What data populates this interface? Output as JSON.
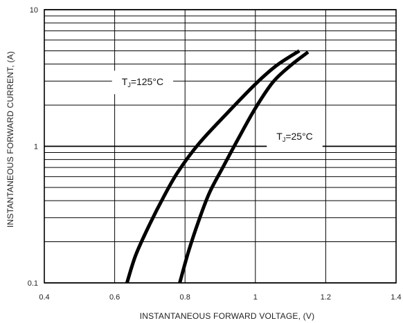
{
  "chart_data": {
    "type": "line",
    "title": "",
    "xlabel": "INSTANTANEOUS FORWARD VOLTAGE, (V)",
    "ylabel": "INSTANTANEOUS FORWARD CURRENT, (A)",
    "xlim": [
      0.4,
      1.4
    ],
    "ylim": [
      0.1,
      10
    ],
    "x_scale": "linear",
    "y_scale": "log",
    "x_ticks": [
      {
        "value": 0.4,
        "label": "0.4"
      },
      {
        "value": 0.6,
        "label": "0.6"
      },
      {
        "value": 0.8,
        "label": "0.8"
      },
      {
        "value": 1.0,
        "label": "1"
      },
      {
        "value": 1.2,
        "label": "1.2"
      },
      {
        "value": 1.4,
        "label": "1.4"
      }
    ],
    "y_ticks": [
      {
        "value": 0.1,
        "label": "0.1"
      },
      {
        "value": 1,
        "label": "1"
      },
      {
        "value": 10,
        "label": "10"
      }
    ],
    "grid": true,
    "series": [
      {
        "name": "",
        "label_main": "T",
        "label_sub": "J",
        "label_rest": "=125°C",
        "label_anchor": {
          "x": 0.62,
          "y": 2.8
        },
        "x": [
          0.635,
          0.66,
          0.7,
          0.74,
          0.78,
          0.84,
          0.92,
          1.0,
          1.06,
          1.125
        ],
        "y": [
          0.1,
          0.16,
          0.27,
          0.43,
          0.65,
          1.05,
          1.75,
          2.85,
          3.9,
          5.0
        ]
      },
      {
        "name": "",
        "label_main": "T",
        "label_sub": "J",
        "label_rest": "=25°C",
        "label_anchor": {
          "x": 1.06,
          "y": 1.12
        },
        "x": [
          0.785,
          0.81,
          0.84,
          0.87,
          0.91,
          0.95,
          1.0,
          1.05,
          1.1,
          1.15
        ],
        "y": [
          0.1,
          0.17,
          0.29,
          0.46,
          0.72,
          1.12,
          1.9,
          2.95,
          3.9,
          4.9
        ]
      }
    ]
  }
}
